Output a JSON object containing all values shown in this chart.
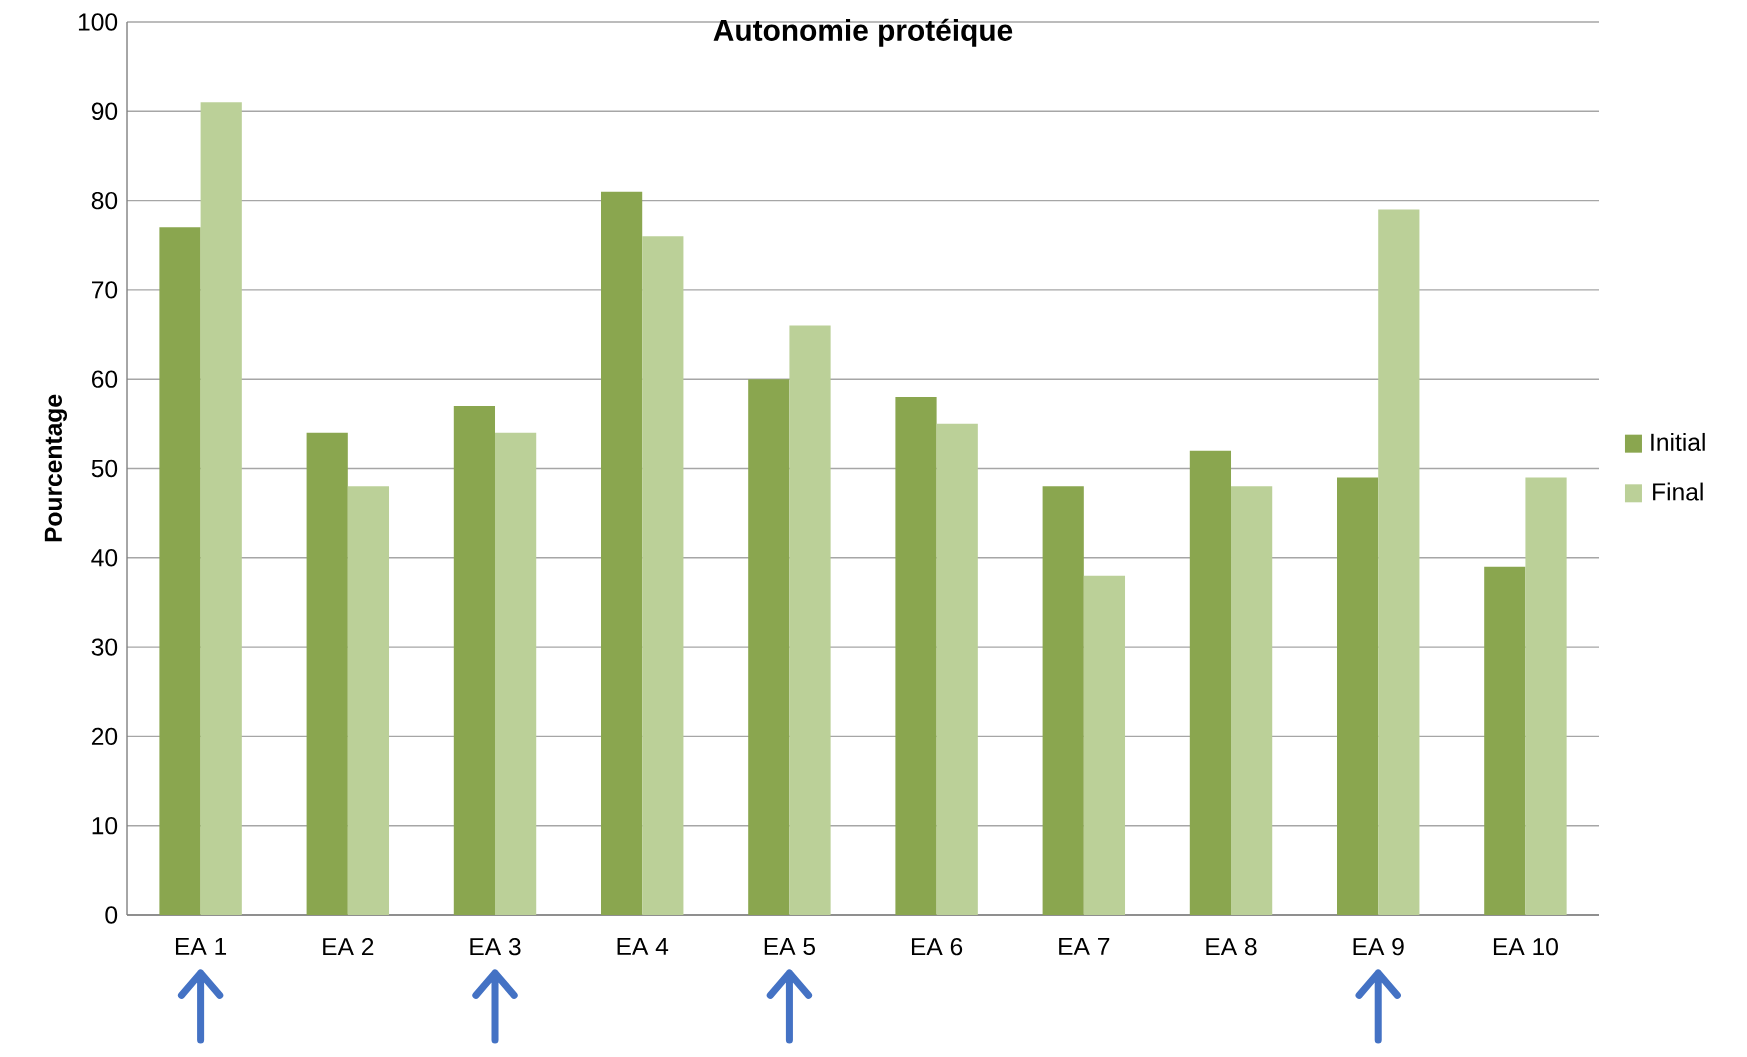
{
  "chart_data": {
    "type": "bar",
    "title": "Autonomie protéique",
    "ylabel": "Pourcentage",
    "categories": [
      "EA 1",
      "EA 2",
      "EA 3",
      "EA 4",
      "EA 5",
      "EA 6",
      "EA 7",
      "EA 8",
      "EA 9",
      "EA 10"
    ],
    "series": [
      {
        "name": "Initial",
        "color": "#8aa64f",
        "values": [
          77,
          54,
          57,
          81,
          60,
          58,
          48,
          52,
          49,
          39
        ]
      },
      {
        "name": "Final",
        "color": "#bbd098",
        "values": [
          91,
          48,
          54,
          76,
          66,
          55,
          38,
          48,
          79,
          49
        ]
      }
    ],
    "ylim": [
      0,
      100
    ],
    "yticks": [
      0,
      10,
      20,
      30,
      40,
      50,
      60,
      70,
      80,
      90,
      100
    ],
    "grid": "y",
    "legend": "right"
  }
}
